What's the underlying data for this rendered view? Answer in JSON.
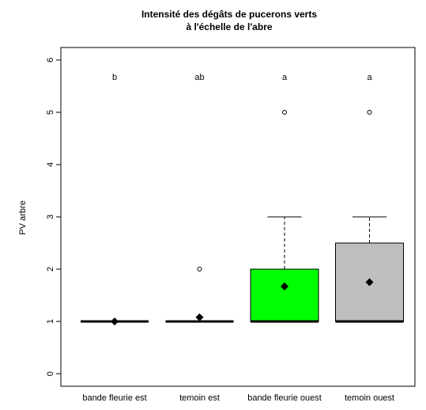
{
  "chart_data": {
    "type": "box",
    "title": [
      "Intensité des dégâts de pucerons verts",
      "à l'échelle de l'abre"
    ],
    "ylabel": "PV arbre",
    "categories": [
      "bande fleurie est",
      "temoin est",
      "bande fleurie ouest",
      "temoin ouest"
    ],
    "letters": [
      "b",
      "ab",
      "a",
      "a"
    ],
    "boxes": [
      {
        "min": 1,
        "q1": 1,
        "median": 1,
        "q3": 1,
        "max": 1,
        "mean": 1,
        "outliers": [],
        "color": "#ffffff"
      },
      {
        "min": 1,
        "q1": 1,
        "median": 1,
        "q3": 1,
        "max": 1,
        "mean": 1.08,
        "outliers": [
          2
        ],
        "color": "#ffffff"
      },
      {
        "min": 1,
        "q1": 1,
        "median": 1,
        "q3": 2,
        "max": 3,
        "mean": 1.67,
        "outliers": [
          5
        ],
        "color": "#00ff00"
      },
      {
        "min": 1,
        "q1": 1,
        "median": 1,
        "q3": 2.5,
        "max": 3,
        "mean": 1.75,
        "outliers": [
          5
        ],
        "color": "#bebebe"
      }
    ],
    "ylim": [
      -0.24,
      6.24
    ],
    "yticks": [
      0,
      1,
      2,
      3,
      4,
      5,
      6
    ]
  }
}
